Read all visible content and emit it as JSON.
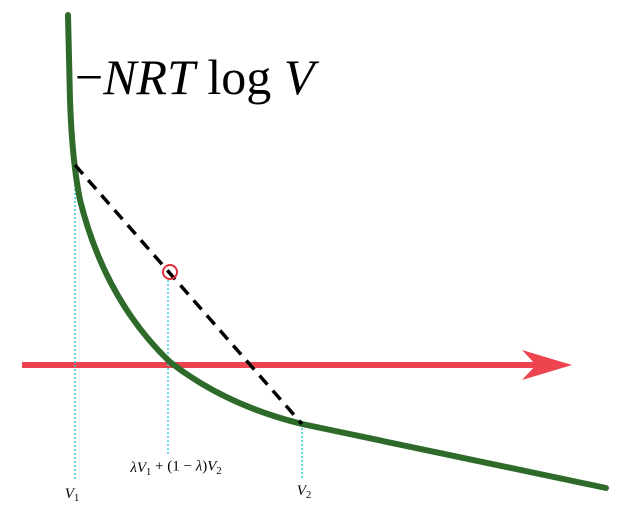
{
  "formula": [
    {
      "text": "−"
    },
    {
      "italic": "NRT"
    },
    {
      "text": " log "
    },
    {
      "italic": "V"
    }
  ],
  "v1_label": [
    {
      "italic": "V"
    },
    {
      "sub": "1"
    }
  ],
  "mix_label": [
    {
      "italic": "λV"
    },
    {
      "sub": "1"
    },
    {
      "text": " + (1 − "
    },
    {
      "italic": "λ"
    },
    {
      "text": ")"
    },
    {
      "italic": "V"
    },
    {
      "sub": "2"
    }
  ],
  "v2_label": [
    {
      "italic": "V"
    },
    {
      "sub": "2"
    }
  ]
}
